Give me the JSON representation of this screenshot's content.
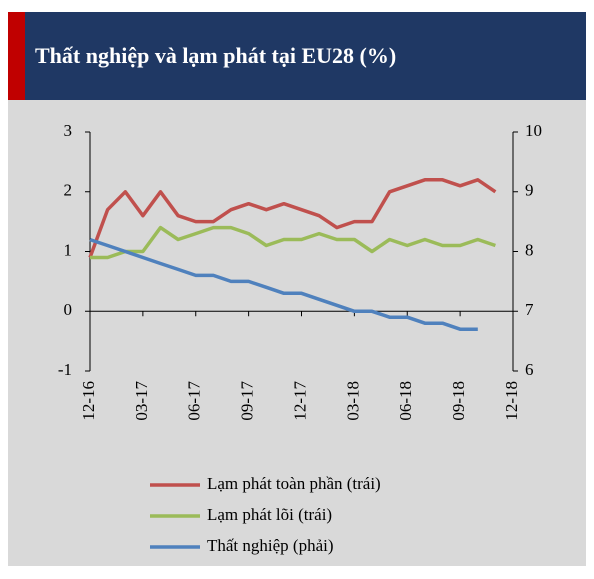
{
  "chart_data": {
    "type": "line",
    "title": "Thất nghiệp và lạm phát tại  EU28 (%)",
    "categories": [
      "12-16",
      null,
      null,
      "03-17",
      null,
      null,
      "06-17",
      null,
      null,
      "09-17",
      null,
      null,
      "12-17",
      null,
      null,
      "03-18",
      null,
      null,
      "06-18",
      null,
      null,
      "09-18",
      null,
      null,
      "12-18"
    ],
    "series": [
      {
        "name": "Lạm phát toàn phần (trái)",
        "color": "#c0504d",
        "axis": "y",
        "values": [
          0.9,
          1.7,
          2.0,
          1.6,
          2.0,
          1.6,
          1.5,
          1.5,
          1.7,
          1.8,
          1.7,
          1.8,
          1.7,
          1.6,
          1.4,
          1.5,
          1.5,
          2.0,
          2.1,
          2.2,
          2.2,
          2.1,
          2.2,
          2.0,
          null
        ]
      },
      {
        "name": "Lạm phát lõi (trái)",
        "color": "#9bbb59",
        "axis": "y",
        "values": [
          0.9,
          0.9,
          1.0,
          1.0,
          1.4,
          1.2,
          1.3,
          1.4,
          1.4,
          1.3,
          1.1,
          1.2,
          1.2,
          1.3,
          1.2,
          1.2,
          1.0,
          1.2,
          1.1,
          1.2,
          1.1,
          1.1,
          1.2,
          1.1,
          null
        ]
      },
      {
        "name": "Thất nghiệp (phải)",
        "color": "#4f81bd",
        "axis": "y2",
        "values": [
          8.2,
          8.1,
          8.0,
          7.9,
          7.8,
          7.7,
          7.6,
          7.6,
          7.5,
          7.5,
          7.4,
          7.3,
          7.3,
          7.2,
          7.1,
          7.0,
          7.0,
          6.9,
          6.9,
          6.8,
          6.8,
          6.7,
          6.7,
          null,
          null
        ]
      }
    ],
    "ylim": [
      -1,
      3
    ],
    "yticks": [
      -1,
      0,
      1,
      2,
      3
    ],
    "y2lim": [
      6,
      10
    ],
    "y2ticks": [
      6,
      7,
      8,
      9,
      10
    ],
    "grid": false
  }
}
